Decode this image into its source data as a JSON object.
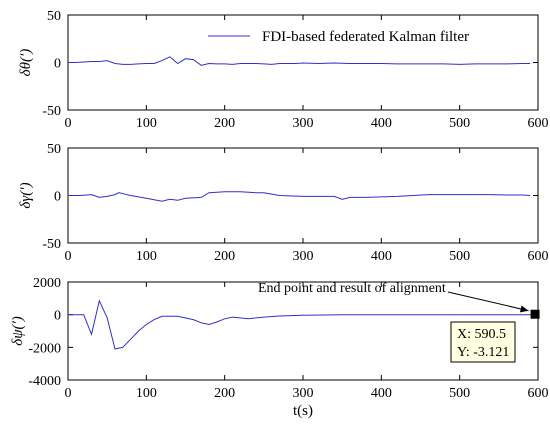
{
  "chart_data": [
    {
      "type": "line",
      "ylabel": "δθ(′)",
      "xlim": [
        0,
        600
      ],
      "ylim": [
        -50,
        50
      ],
      "xticks": [
        0,
        100,
        200,
        300,
        400,
        500,
        600
      ],
      "yticks": [
        -50,
        0,
        50
      ],
      "legend": {
        "entries": [
          "FDI-based federated Kalman filter"
        ],
        "placement": "top-right"
      },
      "series": [
        {
          "name": "FDI-based federated Kalman filter",
          "color": "#3030c8",
          "x": [
            0,
            10,
            20,
            30,
            40,
            50,
            60,
            70,
            80,
            90,
            100,
            110,
            120,
            130,
            140,
            150,
            160,
            170,
            180,
            190,
            200,
            210,
            220,
            230,
            240,
            250,
            260,
            270,
            280,
            290,
            300,
            320,
            340,
            360,
            380,
            400,
            420,
            440,
            460,
            480,
            500,
            520,
            540,
            560,
            580,
            590
          ],
          "y": [
            0,
            0,
            0.5,
            1,
            1,
            2,
            -1,
            -2,
            -2,
            -1.5,
            -1,
            -1,
            2,
            6,
            -1,
            4,
            3,
            -3,
            -1,
            -1.5,
            -1.5,
            -2,
            -1,
            -1,
            -1,
            -1.5,
            -2,
            -1,
            -1,
            -1,
            -0.5,
            -1,
            -0.5,
            -1,
            -1,
            -1,
            -1.5,
            -1.5,
            -1.5,
            -1.5,
            -2,
            -1.5,
            -1.5,
            -1.5,
            -1,
            -1
          ]
        }
      ]
    },
    {
      "type": "line",
      "ylabel": "δγ(′)",
      "xlim": [
        0,
        600
      ],
      "ylim": [
        -50,
        50
      ],
      "xticks": [
        0,
        100,
        200,
        300,
        400,
        500,
        600
      ],
      "yticks": [
        -50,
        0,
        50
      ],
      "series": [
        {
          "color": "#3030c8",
          "x": [
            0,
            15,
            30,
            40,
            50,
            60,
            65,
            80,
            100,
            120,
            130,
            140,
            150,
            170,
            180,
            200,
            220,
            240,
            250,
            270,
            300,
            340,
            350,
            360,
            380,
            420,
            440,
            460,
            480,
            500,
            520,
            540,
            560,
            580,
            590
          ],
          "y": [
            0,
            0,
            1,
            -2,
            -1,
            1,
            3,
            0,
            -3,
            -6,
            -4,
            -5,
            -3,
            -2,
            3,
            4,
            4,
            3,
            3,
            0,
            -1,
            -1,
            -4,
            -2,
            -2,
            -1,
            0,
            1,
            1,
            1,
            1,
            1,
            0.5,
            0.5,
            0
          ]
        }
      ]
    },
    {
      "type": "line",
      "ylabel": "δψ(′)",
      "xlabel": "t(s)",
      "xlim": [
        0,
        600
      ],
      "ylim": [
        -4000,
        2000
      ],
      "xticks": [
        0,
        100,
        200,
        300,
        400,
        500,
        600
      ],
      "yticks": [
        -4000,
        -2000,
        0,
        2000
      ],
      "annotation": {
        "text": "End point and result of alignment",
        "x": 590.5,
        "y": -3.121
      },
      "datatip": {
        "x_text": "X: 590.5",
        "y_text": "Y: -3.121"
      },
      "series": [
        {
          "color": "#3030c8",
          "x": [
            0,
            20,
            30,
            40,
            50,
            60,
            70,
            80,
            90,
            100,
            110,
            120,
            140,
            160,
            170,
            180,
            190,
            200,
            210,
            230,
            250,
            270,
            300,
            350,
            400,
            500,
            590.5
          ],
          "y": [
            0,
            0,
            -1200,
            850,
            -200,
            -2100,
            -2000,
            -1500,
            -1000,
            -600,
            -300,
            -100,
            -100,
            -300,
            -500,
            -600,
            -450,
            -250,
            -150,
            -250,
            -150,
            -80,
            -30,
            -10,
            -5,
            -3,
            -3.121
          ]
        }
      ]
    }
  ]
}
